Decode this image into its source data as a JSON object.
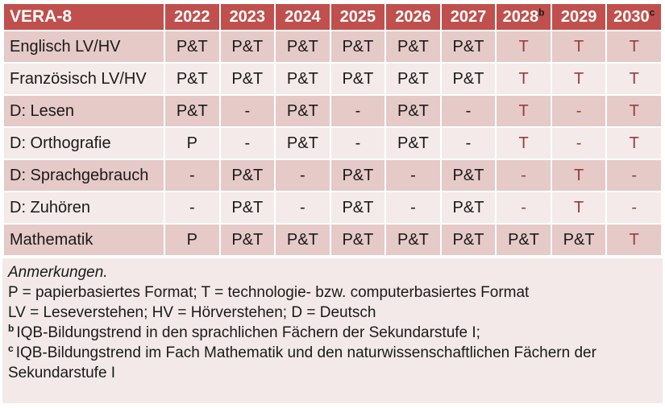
{
  "table": {
    "header": {
      "label": "VERA-8",
      "years": [
        {
          "text": "2022"
        },
        {
          "text": "2023"
        },
        {
          "text": "2024"
        },
        {
          "text": "2025"
        },
        {
          "text": "2026"
        },
        {
          "text": "2027"
        },
        {
          "text": "2028",
          "sup": "b"
        },
        {
          "text": "2029"
        },
        {
          "text": "2030",
          "sup": "c"
        }
      ]
    },
    "rows": [
      {
        "label": "Englisch LV/HV",
        "cells": [
          {
            "text": "P&T"
          },
          {
            "text": "P&T"
          },
          {
            "text": "P&T"
          },
          {
            "text": "P&T"
          },
          {
            "text": "P&T"
          },
          {
            "text": "P&T"
          },
          {
            "text": "T",
            "red": true
          },
          {
            "text": "T",
            "red": true
          },
          {
            "text": "T",
            "red": true
          }
        ]
      },
      {
        "label": "Französisch LV/HV",
        "cells": [
          {
            "text": "P&T"
          },
          {
            "text": "P&T"
          },
          {
            "text": "P&T"
          },
          {
            "text": "P&T"
          },
          {
            "text": "P&T"
          },
          {
            "text": "P&T"
          },
          {
            "text": "T",
            "red": true
          },
          {
            "text": "T",
            "red": true
          },
          {
            "text": "T",
            "red": true
          }
        ]
      },
      {
        "label": "D: Lesen",
        "cells": [
          {
            "text": "P&T"
          },
          {
            "text": "-"
          },
          {
            "text": "P&T"
          },
          {
            "text": "-"
          },
          {
            "text": "P&T"
          },
          {
            "text": "-"
          },
          {
            "text": "T",
            "red": true
          },
          {
            "text": "-",
            "red": true
          },
          {
            "text": "T",
            "red": true
          }
        ]
      },
      {
        "label": "D: Orthografie",
        "cells": [
          {
            "text": "P"
          },
          {
            "text": "-"
          },
          {
            "text": "P&T"
          },
          {
            "text": "-"
          },
          {
            "text": "P&T"
          },
          {
            "text": "-"
          },
          {
            "text": "T",
            "red": true
          },
          {
            "text": "-",
            "red": true
          },
          {
            "text": "T",
            "red": true
          }
        ]
      },
      {
        "label": "D: Sprachgebrauch",
        "cells": [
          {
            "text": "-"
          },
          {
            "text": "P&T"
          },
          {
            "text": "-"
          },
          {
            "text": "P&T"
          },
          {
            "text": "-"
          },
          {
            "text": "P&T"
          },
          {
            "text": "-",
            "red": true
          },
          {
            "text": "T",
            "red": true
          },
          {
            "text": "-",
            "red": true
          }
        ]
      },
      {
        "label": "D: Zuhören",
        "cells": [
          {
            "text": "-"
          },
          {
            "text": "P&T"
          },
          {
            "text": "-"
          },
          {
            "text": "P&T"
          },
          {
            "text": "-"
          },
          {
            "text": "P&T"
          },
          {
            "text": "-",
            "red": true
          },
          {
            "text": "T",
            "red": true
          },
          {
            "text": "-",
            "red": true
          }
        ]
      },
      {
        "label": "Mathematik",
        "cells": [
          {
            "text": "P"
          },
          {
            "text": "P&T"
          },
          {
            "text": "P&T"
          },
          {
            "text": "P&T"
          },
          {
            "text": "P&T"
          },
          {
            "text": "P&T"
          },
          {
            "text": "P&T"
          },
          {
            "text": "P&T"
          },
          {
            "text": "T",
            "red": true
          }
        ]
      }
    ]
  },
  "notes": {
    "lines": [
      {
        "text": "Anmerkungen.",
        "italic": true
      },
      {
        "text": "P = papierbasiertes Format; T = technologie- bzw. computerbasiertes Format"
      },
      {
        "text": "LV = Leseverstehen; HV = Hörverstehen; D = Deutsch"
      },
      {
        "text": "IQB-Bildungstrend in den sprachlichen Fächern der Sekundarstufe I;",
        "sup": "b"
      },
      {
        "text": "IQB-Bildungstrend im Fach Mathematik und den naturwissenschaftlichen Fächern der Sekundarstufe I",
        "sup": "c"
      }
    ]
  },
  "colors": {
    "header_bg": "#C0504D",
    "band_dark": "#E5CAC8",
    "band_light": "#F4EAE9",
    "notes_bg": "#F2E9E8",
    "grid_white": "#FFFFFF",
    "header_text": "#FFFFFF",
    "cell_text": "#1A1A1A",
    "red_text": "#9A3B38"
  }
}
